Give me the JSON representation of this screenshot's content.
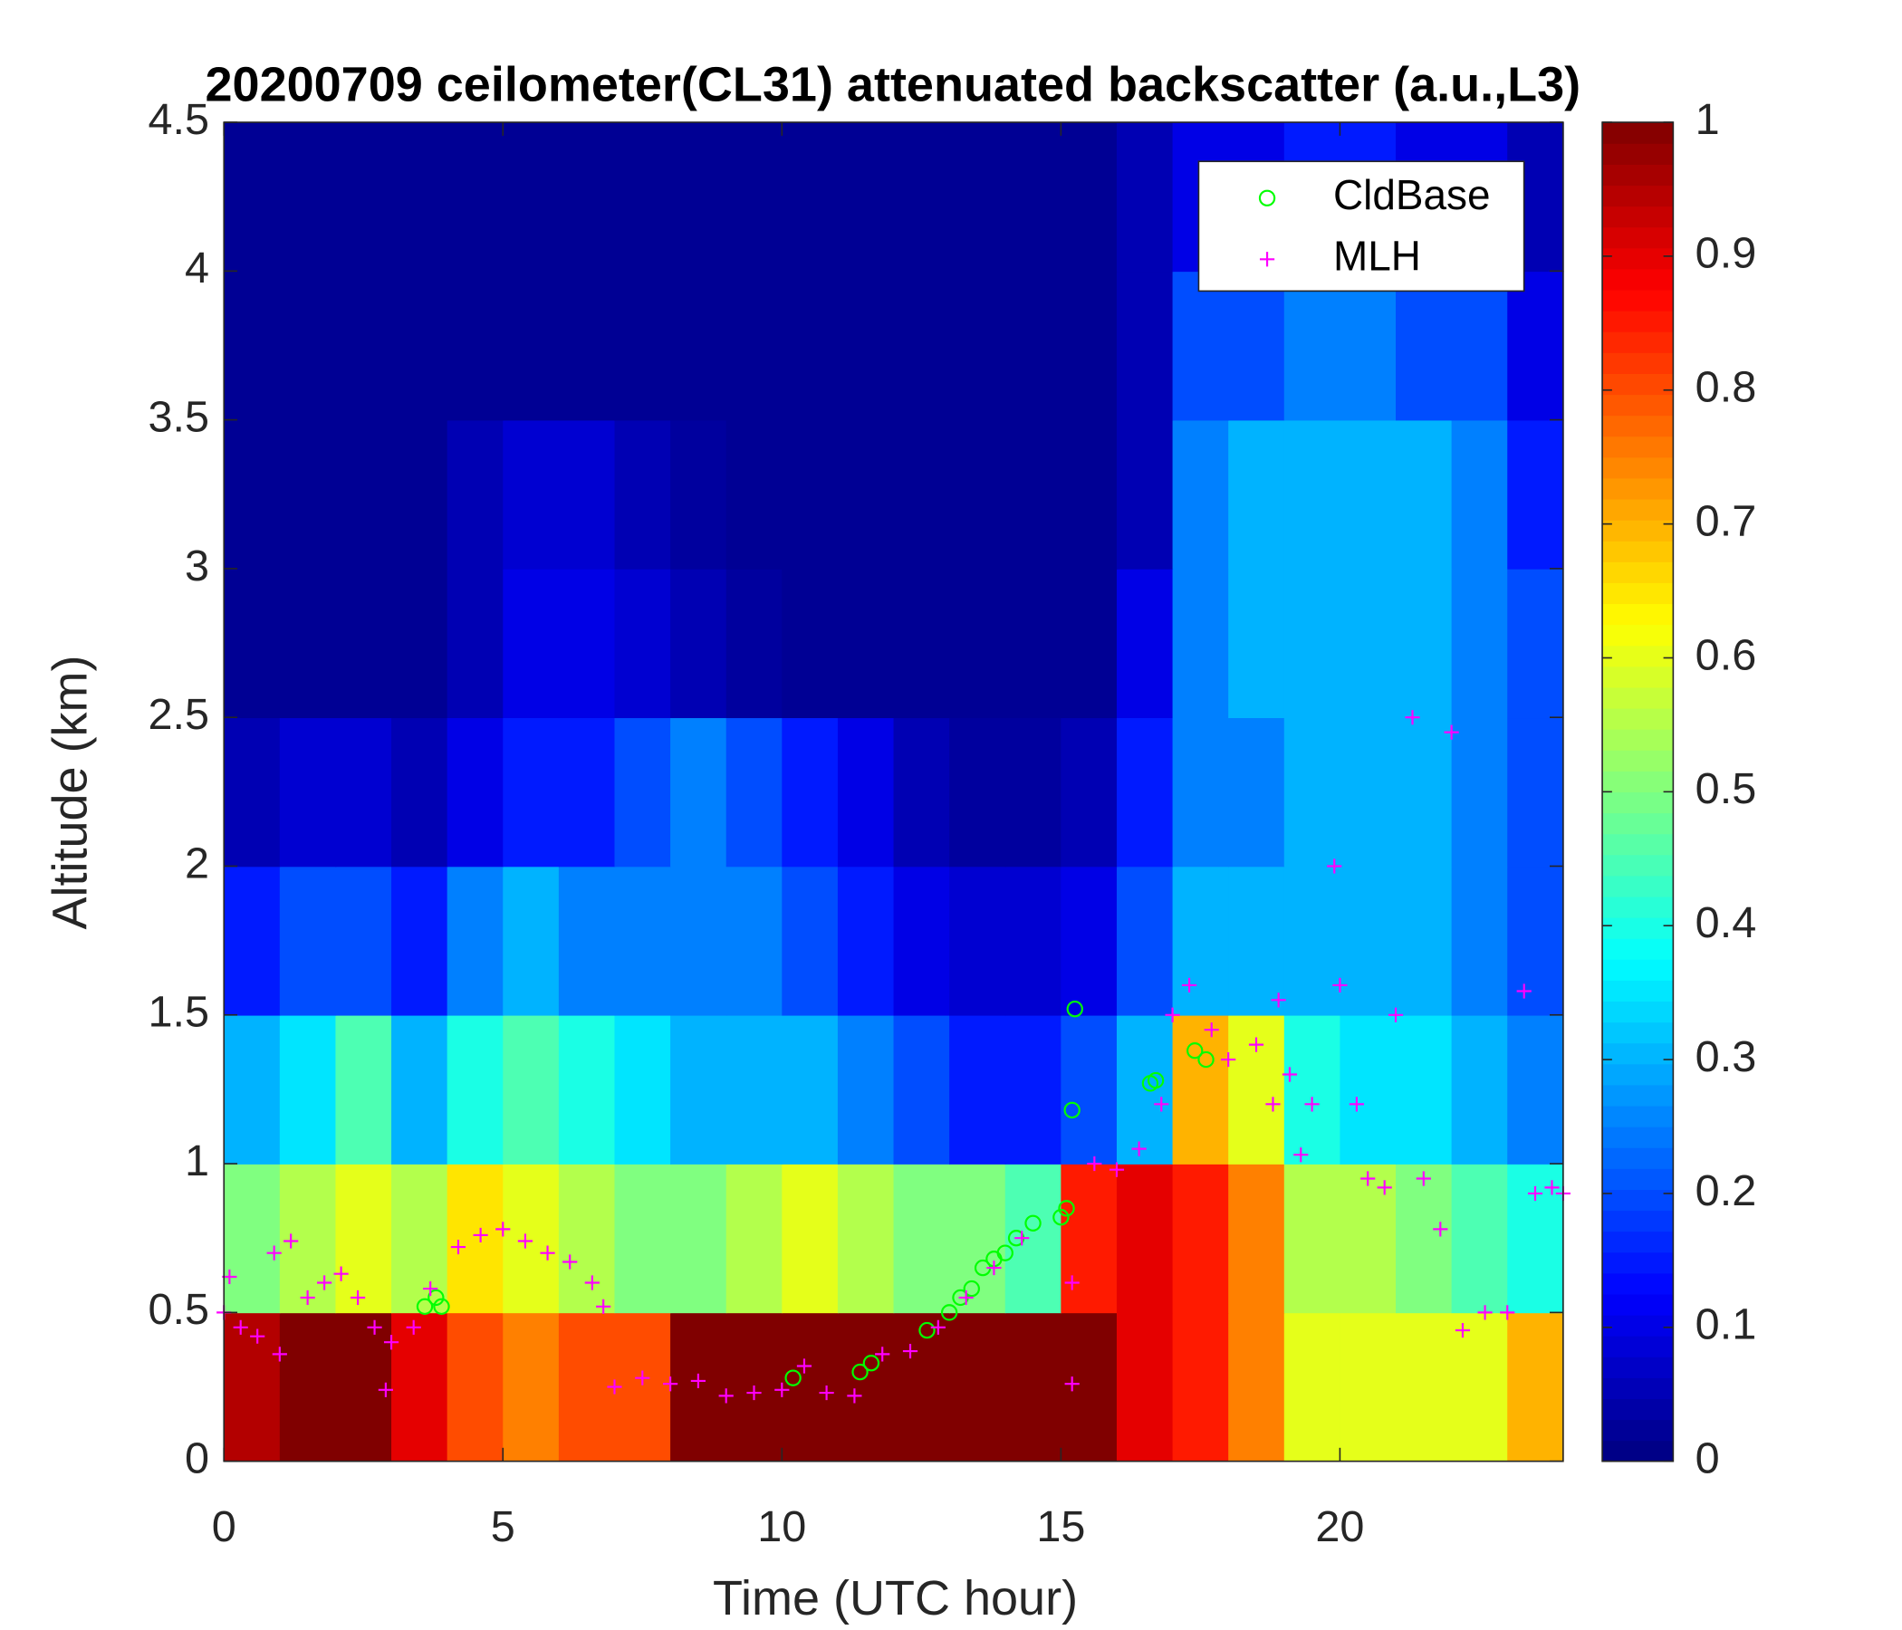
{
  "chart_data": {
    "type": "heatmap",
    "title": "20200709 ceilometer(CL31) attenuated backscatter (a.u.,L3)",
    "xlabel": "Time (UTC hour)",
    "ylabel": "Altitude (km)",
    "xlim": [
      0,
      24
    ],
    "ylim": [
      0,
      4.5
    ],
    "xticks": [
      0,
      5,
      10,
      15,
      20
    ],
    "yticks": [
      0,
      0.5,
      1,
      1.5,
      2,
      2.5,
      3,
      3.5,
      4,
      4.5
    ],
    "clim": [
      0,
      1
    ],
    "cticks": [
      0,
      0.1,
      0.2,
      0.3,
      0.4,
      0.5,
      0.6,
      0.7,
      0.8,
      0.9,
      1
    ],
    "colormap": "jet",
    "legend": "top-right",
    "xbins": [
      0,
      1,
      2,
      3,
      4,
      5,
      6,
      7,
      8,
      9,
      10,
      11,
      12,
      13,
      14,
      15,
      16,
      17,
      18,
      19,
      20,
      21,
      22,
      23,
      24
    ],
    "ybins": [
      0,
      0.5,
      1,
      1.5,
      2,
      2.5,
      3,
      3.5,
      4,
      4.5
    ],
    "z": [
      [
        0.95,
        1,
        1,
        0.9,
        0.8,
        0.75,
        0.8,
        0.8,
        1,
        1,
        1,
        1,
        1,
        1,
        1,
        1,
        0.9,
        0.85,
        0.75,
        0.6,
        0.6,
        0.6,
        0.6,
        0.7
      ],
      [
        0.5,
        0.55,
        0.6,
        0.55,
        0.65,
        0.6,
        0.55,
        0.5,
        0.5,
        0.55,
        0.6,
        0.55,
        0.5,
        0.5,
        0.45,
        0.85,
        0.9,
        0.85,
        0.75,
        0.55,
        0.55,
        0.5,
        0.45,
        0.4
      ],
      [
        0.3,
        0.35,
        0.45,
        0.3,
        0.4,
        0.45,
        0.4,
        0.35,
        0.3,
        0.3,
        0.3,
        0.25,
        0.2,
        0.15,
        0.15,
        0.2,
        0.3,
        0.7,
        0.6,
        0.4,
        0.35,
        0.35,
        0.3,
        0.25
      ],
      [
        0.15,
        0.2,
        0.2,
        0.15,
        0.25,
        0.3,
        0.25,
        0.25,
        0.25,
        0.25,
        0.2,
        0.15,
        0.1,
        0.08,
        0.08,
        0.1,
        0.2,
        0.3,
        0.3,
        0.3,
        0.3,
        0.3,
        0.25,
        0.2
      ],
      [
        0.05,
        0.08,
        0.08,
        0.05,
        0.1,
        0.15,
        0.15,
        0.2,
        0.25,
        0.2,
        0.15,
        0.1,
        0.05,
        0.03,
        0.03,
        0.05,
        0.15,
        0.25,
        0.25,
        0.3,
        0.3,
        0.3,
        0.25,
        0.2
      ],
      [
        0.02,
        0.02,
        0.02,
        0.02,
        0.05,
        0.1,
        0.1,
        0.08,
        0.05,
        0.03,
        0.02,
        0.02,
        0.02,
        0.02,
        0.02,
        0.02,
        0.1,
        0.25,
        0.3,
        0.3,
        0.3,
        0.3,
        0.25,
        0.2
      ],
      [
        0.02,
        0.02,
        0.02,
        0.02,
        0.05,
        0.08,
        0.08,
        0.05,
        0.03,
        0.02,
        0.02,
        0.02,
        0.02,
        0.02,
        0.02,
        0.02,
        0.05,
        0.25,
        0.3,
        0.3,
        0.3,
        0.3,
        0.25,
        0.15
      ],
      [
        0.02,
        0.02,
        0.02,
        0.02,
        0.02,
        0.02,
        0.02,
        0.02,
        0.02,
        0.02,
        0.02,
        0.02,
        0.02,
        0.02,
        0.02,
        0.02,
        0.05,
        0.2,
        0.2,
        0.25,
        0.25,
        0.2,
        0.2,
        0.1
      ],
      [
        0.02,
        0.02,
        0.02,
        0.02,
        0.02,
        0.02,
        0.02,
        0.02,
        0.02,
        0.02,
        0.02,
        0.02,
        0.02,
        0.02,
        0.02,
        0.02,
        0.05,
        0.1,
        0.1,
        0.15,
        0.15,
        0.1,
        0.1,
        0.05
      ]
    ],
    "series": [
      {
        "name": "CldBase",
        "color": "#00ff00",
        "marker": "circle",
        "x": [
          3.6,
          3.8,
          3.9,
          10.2,
          11.4,
          11.6,
          12.6,
          13.0,
          13.2,
          13.4,
          13.6,
          13.8,
          14.0,
          14.2,
          14.5,
          15.0,
          15.1,
          15.2,
          15.25,
          16.6,
          16.7,
          17.4,
          17.6
        ],
        "values": [
          0.52,
          0.55,
          0.52,
          0.28,
          0.3,
          0.33,
          0.44,
          0.5,
          0.55,
          0.58,
          0.65,
          0.68,
          0.7,
          0.75,
          0.8,
          0.82,
          0.85,
          1.18,
          1.52,
          1.27,
          1.28,
          1.38,
          1.35
        ]
      },
      {
        "name": "MLH",
        "color": "#ff00ff",
        "marker": "plus",
        "x": [
          0,
          0.1,
          0.3,
          0.6,
          0.9,
          1.0,
          1.2,
          1.5,
          1.8,
          2.1,
          2.4,
          2.7,
          2.9,
          3.0,
          3.4,
          3.7,
          4.2,
          4.6,
          5.0,
          5.4,
          5.8,
          6.2,
          6.6,
          6.8,
          7.0,
          7.5,
          8.0,
          8.5,
          9.0,
          9.5,
          10.0,
          10.4,
          10.8,
          11.3,
          11.8,
          12.3,
          12.8,
          13.3,
          13.8,
          14.3,
          15.2,
          15.2,
          15.6,
          16.0,
          16.4,
          16.8,
          17.0,
          17.3,
          17.7,
          18.0,
          18.5,
          18.8,
          18.9,
          19.1,
          19.3,
          19.5,
          19.9,
          20.0,
          20.3,
          20.5,
          20.8,
          21.0,
          21.3,
          21.5,
          21.8,
          22.0,
          22.2,
          22.6,
          23.0,
          23.3,
          23.5,
          23.8,
          24.0
        ],
        "values": [
          0.5,
          0.62,
          0.45,
          0.42,
          0.7,
          0.36,
          0.74,
          0.55,
          0.6,
          0.63,
          0.55,
          0.45,
          0.24,
          0.4,
          0.45,
          0.58,
          0.72,
          0.76,
          0.78,
          0.74,
          0.7,
          0.67,
          0.6,
          0.52,
          0.25,
          0.28,
          0.26,
          0.27,
          0.22,
          0.23,
          0.24,
          0.32,
          0.23,
          0.22,
          0.36,
          0.37,
          0.45,
          0.55,
          0.65,
          0.75,
          0.6,
          0.26,
          1.0,
          0.98,
          1.05,
          1.2,
          1.5,
          1.6,
          1.45,
          1.35,
          1.4,
          1.2,
          1.55,
          1.3,
          1.03,
          1.2,
          2.0,
          1.6,
          1.2,
          0.95,
          0.92,
          1.5,
          2.5,
          0.95,
          0.78,
          2.45,
          0.44,
          0.5,
          0.5,
          1.58,
          0.9,
          0.92,
          0.9
        ]
      }
    ]
  }
}
